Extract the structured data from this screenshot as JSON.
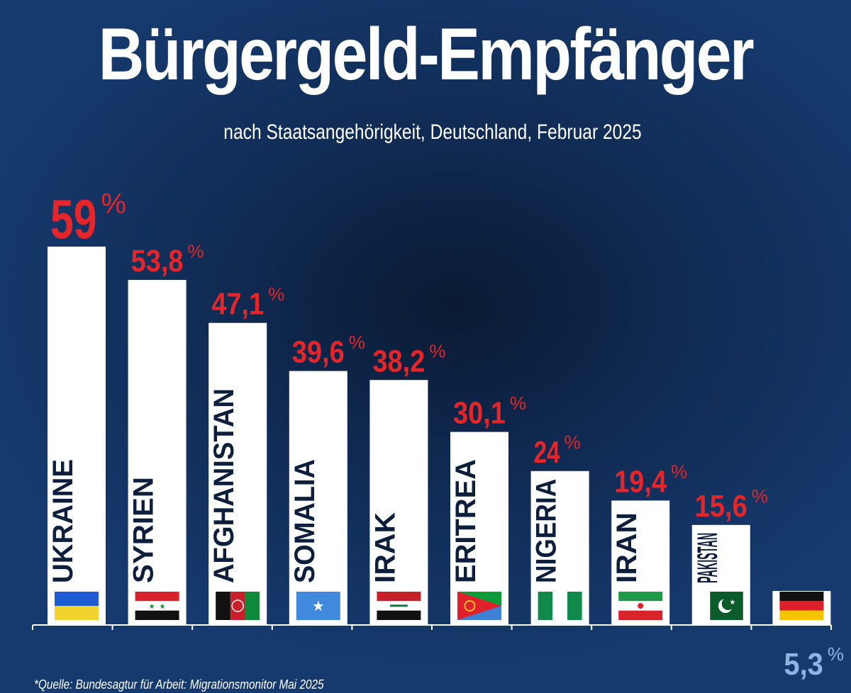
{
  "title": "Bürgergeld-Empfänger",
  "subtitle": "nach Staatsangehörigkeit, Deutschland, Februar 2025",
  "source": "*Quelle: Bundesagtur für Arbeit: Migrationsmonitor Mai 2025",
  "colors": {
    "bar": "#ffffff",
    "value_text": "#e4262b",
    "baseline_value_text": "#8fb4e2",
    "axis": "#ffffff"
  },
  "chart_data": {
    "type": "bar",
    "title": "Bürgergeld-Empfänger",
    "subtitle": "nach Staatsangehörigkeit, Deutschland, Februar 2025",
    "categories": [
      "UKRAINE",
      "SYRIEN",
      "AFGHANISTAN",
      "SOMALIA",
      "IRAK",
      "ERITREA",
      "NIGERIA",
      "IRAN",
      "PAKISTAN",
      ""
    ],
    "values": [
      59,
      53.8,
      47.1,
      39.6,
      38.2,
      30.1,
      24,
      19.4,
      15.6,
      5.3
    ],
    "value_labels": [
      "59",
      "53,8",
      "47,1",
      "39,6",
      "38,2",
      "30,1",
      "24",
      "19,4",
      "15,6",
      "5,3"
    ],
    "unit": "%",
    "flags": [
      "ukraine-flag",
      "syria-flag",
      "afghanistan-flag",
      "somalia-flag",
      "iraq-flag",
      "eritrea-flag",
      "nigeria-flag",
      "iran-flag",
      "pakistan-flag",
      "germany-flag"
    ],
    "ylim": [
      0,
      59
    ],
    "grid": false,
    "legend": "none"
  }
}
